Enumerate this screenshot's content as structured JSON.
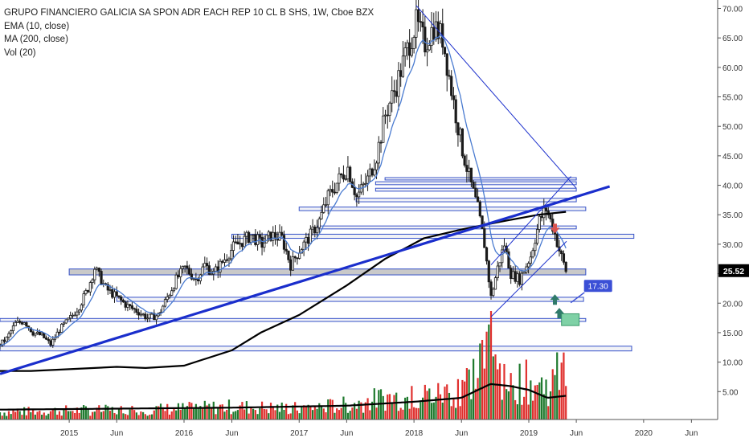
{
  "legend": {
    "title": "GRUPO FINANCIERO GALICIA SA SPON ADR EACH REP 10 CL B SHS, 1W, Cboe BZX",
    "ema": "EMA (10, close)",
    "ma": "MA (200, close)",
    "vol": "Vol (20)"
  },
  "colors": {
    "background": "#ffffff",
    "candle": "#1a1a1a",
    "ema": "#4a7bd0",
    "ma": "#000000",
    "trendline": "#1a2ecc",
    "zone_fill": "#c9c9c9",
    "zone_stroke": "#3450c8",
    "volume_up": "#1f7a2e",
    "volume_down": "#e0302e",
    "volume_ma": "#000000",
    "last_price_bg": "#000000",
    "target_label_bg": "#3b4fd6",
    "arrow_up": "#2f7a6a",
    "box_green": "#7fd1a6"
  },
  "chart_data": {
    "type": "candlestick",
    "title": "GRUPO FINANCIERO GALICIA SA SPON ADR EACH REP 10 CL B SHS, 1W, Cboe BZX",
    "interval": "1W",
    "x_range": [
      "2014-05-26",
      "2020-12-01"
    ],
    "ylim": [
      0,
      72
    ],
    "y_ticks": [
      {
        "value": 70,
        "label": "70.00"
      },
      {
        "value": 65,
        "label": "65.00"
      },
      {
        "value": 60,
        "label": "60.00"
      },
      {
        "value": 55,
        "label": "55.00"
      },
      {
        "value": 50,
        "label": "50.00"
      },
      {
        "value": 45,
        "label": "45.00"
      },
      {
        "value": 40,
        "label": "40.00"
      },
      {
        "value": 35,
        "label": "35.00"
      },
      {
        "value": 30,
        "label": "30.00"
      },
      {
        "value": 25,
        "label": "25.00"
      },
      {
        "value": 20,
        "label": "20.00"
      },
      {
        "value": 15,
        "label": "15.00"
      },
      {
        "value": 10,
        "label": "10.00"
      },
      {
        "value": 5,
        "label": "5.00"
      }
    ],
    "x_ticks": [
      {
        "date": "2015-01-01",
        "label": "2015"
      },
      {
        "date": "2015-06-01",
        "label": "Jun"
      },
      {
        "date": "2016-01-01",
        "label": "2016"
      },
      {
        "date": "2016-06-01",
        "label": "Jun"
      },
      {
        "date": "2017-01-01",
        "label": "2017"
      },
      {
        "date": "2017-06-01",
        "label": "Jun"
      },
      {
        "date": "2018-01-01",
        "label": "2018"
      },
      {
        "date": "2018-06-01",
        "label": "Jun"
      },
      {
        "date": "2019-01-01",
        "label": "2019"
      },
      {
        "date": "2019-06-01",
        "label": "Jun"
      },
      {
        "date": "2020-01-01",
        "label": "2020"
      },
      {
        "date": "2020-06-01",
        "label": "Jun"
      }
    ],
    "price_path": [
      [
        "2014-05-26",
        13
      ],
      [
        "2014-06-16",
        14
      ],
      [
        "2014-07-14",
        16.5
      ],
      [
        "2014-08-11",
        17
      ],
      [
        "2014-09-08",
        15
      ],
      [
        "2014-10-06",
        14.5
      ],
      [
        "2014-11-03",
        13
      ],
      [
        "2014-12-01",
        15.5
      ],
      [
        "2015-01-05",
        17.5
      ],
      [
        "2015-02-02",
        19.5
      ],
      [
        "2015-03-02",
        22.5
      ],
      [
        "2015-03-23",
        26
      ],
      [
        "2015-04-27",
        22.5
      ],
      [
        "2015-06-01",
        21
      ],
      [
        "2015-07-06",
        19.5
      ],
      [
        "2015-08-10",
        18.5
      ],
      [
        "2015-09-07",
        17.5
      ],
      [
        "2015-10-12",
        18
      ],
      [
        "2015-11-09",
        21
      ],
      [
        "2015-12-07",
        24
      ],
      [
        "2016-01-04",
        26
      ],
      [
        "2016-02-08",
        24
      ],
      [
        "2016-03-07",
        26.5
      ],
      [
        "2016-04-04",
        25
      ],
      [
        "2016-05-09",
        27.5
      ],
      [
        "2016-06-06",
        29.5
      ],
      [
        "2016-07-04",
        30.5
      ],
      [
        "2016-08-01",
        31.5
      ],
      [
        "2016-09-05",
        30
      ],
      [
        "2016-10-03",
        31.5
      ],
      [
        "2016-11-07",
        31
      ],
      [
        "2016-12-05",
        26.5
      ],
      [
        "2017-01-02",
        29
      ],
      [
        "2017-02-06",
        31.5
      ],
      [
        "2017-03-06",
        34
      ],
      [
        "2017-04-03",
        38
      ],
      [
        "2017-05-08",
        41
      ],
      [
        "2017-06-05",
        43
      ],
      [
        "2017-07-03",
        38
      ],
      [
        "2017-08-07",
        41
      ],
      [
        "2017-09-04",
        45
      ],
      [
        "2017-10-02",
        52
      ],
      [
        "2017-11-06",
        57
      ],
      [
        "2017-12-04",
        62
      ],
      [
        "2018-01-08",
        67.5
      ],
      [
        "2018-02-05",
        64
      ],
      [
        "2018-03-05",
        67
      ],
      [
        "2018-04-02",
        65
      ],
      [
        "2018-05-07",
        54
      ],
      [
        "2018-06-04",
        46
      ],
      [
        "2018-07-02",
        40
      ],
      [
        "2018-07-23",
        36
      ],
      [
        "2018-08-13",
        30
      ],
      [
        "2018-09-03",
        21
      ],
      [
        "2018-09-24",
        26
      ],
      [
        "2018-10-15",
        30
      ],
      [
        "2018-11-05",
        25
      ],
      [
        "2018-12-03",
        24
      ],
      [
        "2019-01-07",
        28
      ],
      [
        "2019-02-04",
        34
      ],
      [
        "2019-02-25",
        36
      ],
      [
        "2019-03-18",
        33
      ],
      [
        "2019-04-08",
        29
      ],
      [
        "2019-04-29",
        25.52
      ]
    ],
    "series": [
      {
        "name": "EMA (10, close)",
        "role": "ema"
      },
      {
        "name": "MA (200, close)",
        "role": "ma",
        "path": [
          [
            "2014-05-26",
            8.5
          ],
          [
            "2014-09-01",
            8.5
          ],
          [
            "2015-01-01",
            8.8
          ],
          [
            "2015-06-01",
            9.2
          ],
          [
            "2015-09-01",
            9
          ],
          [
            "2016-01-01",
            9.4
          ],
          [
            "2016-06-01",
            12
          ],
          [
            "2016-09-01",
            15
          ],
          [
            "2017-01-01",
            18
          ],
          [
            "2017-06-01",
            23
          ],
          [
            "2017-10-01",
            27.5
          ],
          [
            "2018-02-01",
            31
          ],
          [
            "2018-06-01",
            32.5
          ],
          [
            "2018-10-01",
            33.8
          ],
          [
            "2019-02-01",
            35
          ],
          [
            "2019-04-29",
            35.5
          ]
        ]
      },
      {
        "name": "Vol (20)",
        "role": "volume"
      }
    ],
    "volume_scale_max": 55,
    "volume_path": [
      [
        "2014-05-26",
        4
      ],
      [
        "2015-01-01",
        5
      ],
      [
        "2015-06-01",
        5
      ],
      [
        "2016-01-01",
        6
      ],
      [
        "2016-06-01",
        7
      ],
      [
        "2017-01-01",
        6
      ],
      [
        "2017-06-01",
        8
      ],
      [
        "2017-10-01",
        12
      ],
      [
        "2018-01-01",
        12
      ],
      [
        "2018-04-01",
        14
      ],
      [
        "2018-06-01",
        18
      ],
      [
        "2018-08-01",
        28
      ],
      [
        "2018-09-01",
        40
      ],
      [
        "2018-10-01",
        30
      ],
      [
        "2018-11-01",
        22
      ],
      [
        "2019-01-01",
        20
      ],
      [
        "2019-03-01",
        18
      ],
      [
        "2019-04-29",
        28
      ]
    ],
    "volume_spikes": [
      [
        "2018-09-03",
        55
      ],
      [
        "2018-09-10",
        32
      ],
      [
        "2018-09-17",
        33
      ],
      [
        "2017-12-25",
        17
      ],
      [
        "2018-06-04",
        20
      ],
      [
        "2019-04-29",
        17
      ]
    ],
    "volume_ma_path": [
      [
        "2014-05-26",
        5
      ],
      [
        "2015-06-01",
        5.5
      ],
      [
        "2016-06-01",
        6
      ],
      [
        "2017-06-01",
        7
      ],
      [
        "2018-01-01",
        9
      ],
      [
        "2018-06-01",
        11
      ],
      [
        "2018-09-01",
        18
      ],
      [
        "2018-11-01",
        17
      ],
      [
        "2019-01-01",
        15
      ],
      [
        "2019-03-01",
        11
      ],
      [
        "2019-04-29",
        12
      ]
    ],
    "volume_down_weeks": [
      "2015-02-02",
      "2015-06-15",
      "2015-08-10",
      "2016-01-18",
      "2016-12-05",
      "2017-07-03",
      "2018-02-05",
      "2018-05-07",
      "2018-05-28",
      "2018-07-23",
      "2018-08-13",
      "2018-09-03",
      "2018-11-05",
      "2019-03-18",
      "2019-04-29"
    ],
    "horizontal_zones": [
      {
        "from": "2015-01-01",
        "to": "2019-07-01",
        "low": 24.8,
        "high": 25.8,
        "filled": true
      },
      {
        "from": "2015-06-01",
        "to": "2019-06-24",
        "low": 20.3,
        "high": 21.0,
        "filled": false
      },
      {
        "from": "2014-05-26",
        "to": "2019-07-01",
        "low": 16.9,
        "high": 17.4,
        "filled": false
      },
      {
        "from": "2014-05-26",
        "to": "2019-11-24",
        "low": 11.9,
        "high": 12.7,
        "filled": false
      },
      {
        "from": "2016-06-01",
        "to": "2019-12-01",
        "low": 31.0,
        "high": 31.7,
        "filled": false
      },
      {
        "from": "2017-03-01",
        "to": "2019-06-01",
        "low": 32.6,
        "high": 33.1,
        "filled": false
      },
      {
        "from": "2017-01-01",
        "to": "2019-07-01",
        "low": 35.7,
        "high": 36.3,
        "filled": false
      },
      {
        "from": "2017-07-01",
        "to": "2019-06-01",
        "low": 37.2,
        "high": 37.8,
        "filled": false
      },
      {
        "from": "2017-09-01",
        "to": "2019-06-01",
        "low": 39.0,
        "high": 39.5,
        "filled": false
      },
      {
        "from": "2017-09-01",
        "to": "2019-06-01",
        "low": 40.1,
        "high": 40.6,
        "filled": false
      },
      {
        "from": "2017-10-01",
        "to": "2019-06-01",
        "low": 40.9,
        "high": 41.3,
        "filled": false
      }
    ],
    "trend_lines": [
      {
        "from": [
          "2014-05-26",
          8
        ],
        "to": [
          "2019-09-15",
          39.8
        ],
        "width": 3.2
      },
      {
        "from": [
          "2018-01-08",
          70.5
        ],
        "to": [
          "2019-06-01",
          39.5
        ],
        "width": 1
      },
      {
        "from": [
          "2018-09-03",
          17.7
        ],
        "to": [
          "2019-05-01",
          30.5
        ],
        "width": 1
      },
      {
        "from": [
          "2018-09-03",
          26.5
        ],
        "to": [
          "2019-05-15",
          41.5
        ],
        "width": 1
      }
    ],
    "annotations": {
      "last_price": {
        "value": 25.52,
        "label": "25.52"
      },
      "target": {
        "date": "2019-04-29",
        "value": 22.8,
        "label": "17.30"
      },
      "sell_flag": {
        "date": "2019-03-25",
        "value": 32.8
      },
      "up_arrows": [
        [
          "2019-03-25",
          21.5
        ],
        [
          "2019-04-08",
          19.2
        ]
      ],
      "target_box": {
        "from": "2019-04-15",
        "to": "2019-06-10",
        "low": 16.2,
        "high": 18.2
      }
    }
  }
}
